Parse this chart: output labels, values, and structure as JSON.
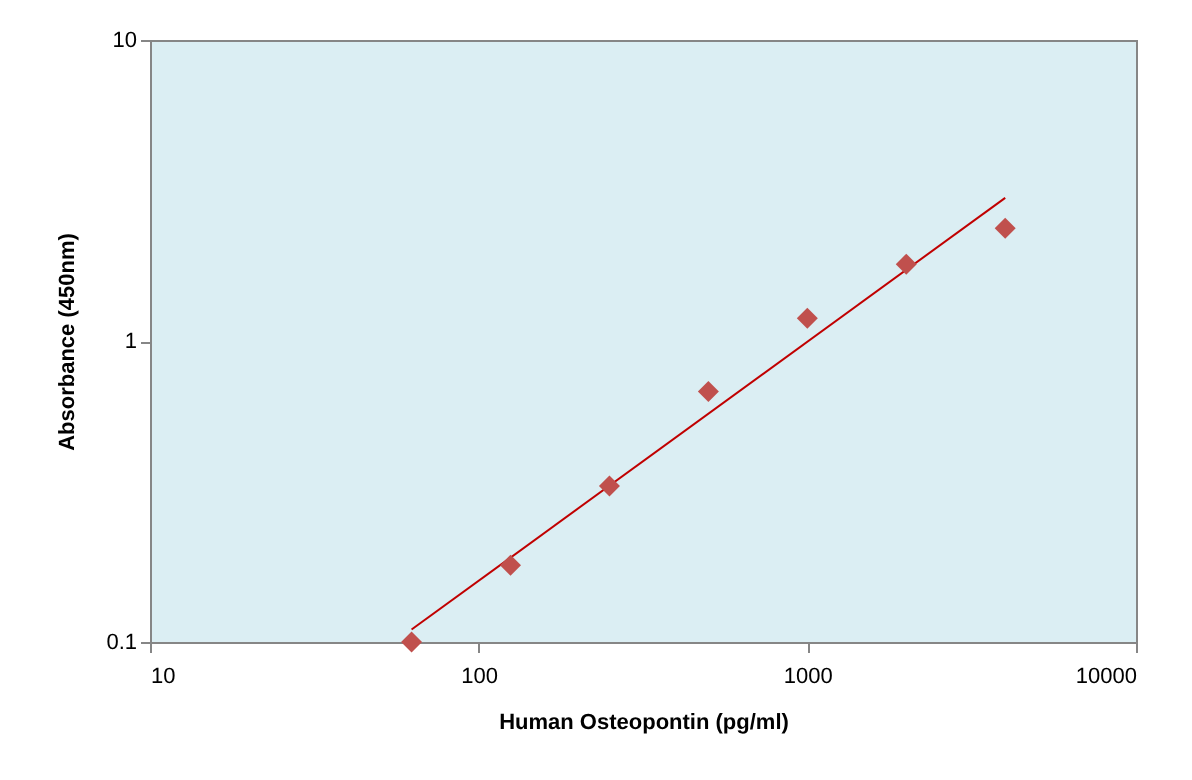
{
  "chart_data": {
    "type": "scatter",
    "xlabel": "Human Osteopontin (pg/ml)",
    "ylabel": "Absorbance (450nm)",
    "log": "xy",
    "xlim": [
      10,
      10000
    ],
    "xticks": [
      10,
      100,
      1000,
      10000
    ],
    "ylim": [
      0.1,
      10
    ],
    "yticks": [
      0.1,
      1,
      10
    ],
    "grid": false,
    "series": [
      {
        "marker": "diamond",
        "color": "#c0504d",
        "x": [
          62.5,
          125,
          250,
          500,
          1000,
          2000,
          4000
        ],
        "values": [
          0.1,
          0.18,
          0.33,
          0.68,
          1.19,
          1.8,
          2.37
        ]
      },
      {
        "type": "line",
        "marker": "none",
        "color": "#c00000",
        "x": [
          62.5,
          4000
        ],
        "values": [
          0.11,
          2.99
        ]
      }
    ]
  }
}
